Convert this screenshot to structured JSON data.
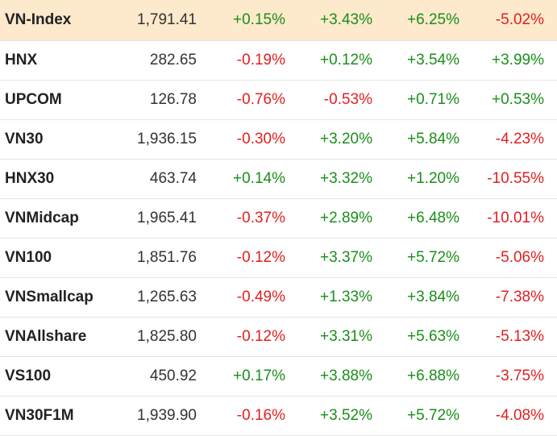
{
  "indices": [
    {
      "name": "VN-Index",
      "value": "1,791.41",
      "changes": [
        "+0.15%",
        "+3.43%",
        "+6.25%",
        "-5.02%"
      ],
      "highlighted": true
    },
    {
      "name": "HNX",
      "value": "282.65",
      "changes": [
        "-0.19%",
        "+0.12%",
        "+3.54%",
        "+3.99%"
      ],
      "highlighted": false
    },
    {
      "name": "UPCOM",
      "value": "126.78",
      "changes": [
        "-0.76%",
        "-0.53%",
        "+0.71%",
        "+0.53%"
      ],
      "highlighted": false
    },
    {
      "name": "VN30",
      "value": "1,936.15",
      "changes": [
        "-0.30%",
        "+3.20%",
        "+5.84%",
        "-4.23%"
      ],
      "highlighted": false
    },
    {
      "name": "HNX30",
      "value": "463.74",
      "changes": [
        "+0.14%",
        "+3.32%",
        "+1.20%",
        "-10.55%"
      ],
      "highlighted": false
    },
    {
      "name": "VNMidcap",
      "value": "1,965.41",
      "changes": [
        "-0.37%",
        "+2.89%",
        "+6.48%",
        "-10.01%"
      ],
      "highlighted": false
    },
    {
      "name": "VN100",
      "value": "1,851.76",
      "changes": [
        "-0.12%",
        "+3.37%",
        "+5.72%",
        "-5.06%"
      ],
      "highlighted": false
    },
    {
      "name": "VNSmallcap",
      "value": "1,265.63",
      "changes": [
        "-0.49%",
        "+1.33%",
        "+3.84%",
        "-7.38%"
      ],
      "highlighted": false
    },
    {
      "name": "VNAllshare",
      "value": "1,825.80",
      "changes": [
        "-0.12%",
        "+3.31%",
        "+5.63%",
        "-5.13%"
      ],
      "highlighted": false
    },
    {
      "name": "VS100",
      "value": "450.92",
      "changes": [
        "+0.17%",
        "+3.88%",
        "+6.88%",
        "-3.75%"
      ],
      "highlighted": false
    },
    {
      "name": "VN30F1M",
      "value": "1,939.90",
      "changes": [
        "-0.16%",
        "+3.52%",
        "+5.72%",
        "-4.08%"
      ],
      "highlighted": false
    }
  ],
  "colors": {
    "positive": "#1a8f1a",
    "negative": "#e02020",
    "highlight_row_bg": "#fde9cc",
    "row_divider": "#e6e6e6"
  }
}
